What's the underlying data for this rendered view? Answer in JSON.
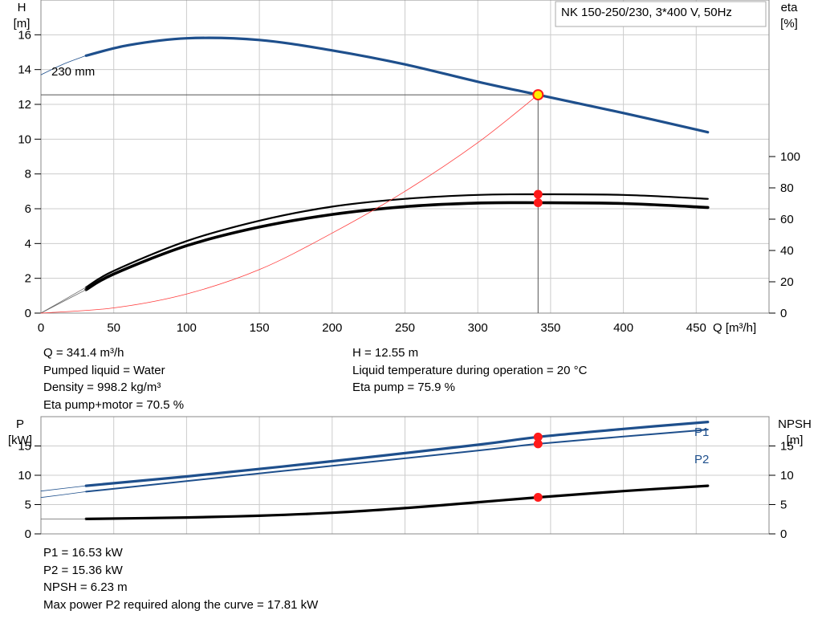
{
  "colors": {
    "head": "#1e4f8c",
    "eta": "#000000",
    "sys": "#ff3b3b",
    "dot": "#ff1a1a",
    "dot_yellow": "#ffee00",
    "grid": "#cccccc",
    "bg": "#ffffff"
  },
  "chart_data": [
    {
      "type": "line",
      "title": "NK 150-250/230, 3*400 V, 50Hz",
      "xlabel": "Q [m³/h]",
      "ylabel_left": [
        "H",
        "[m]"
      ],
      "ylabel_right": [
        "eta",
        "[%]"
      ],
      "impeller_label": "230 mm",
      "xlim": [
        0,
        500
      ],
      "ylim_left": [
        0,
        18
      ],
      "ylim_right": [
        0,
        200
      ],
      "x_ticks": [
        0,
        50,
        100,
        150,
        200,
        250,
        300,
        350,
        400,
        450
      ],
      "y_left_ticks": [
        0,
        2,
        4,
        6,
        8,
        10,
        12,
        14,
        16
      ],
      "y_right_ticks": [
        0,
        20,
        40,
        60,
        80,
        100
      ],
      "grid": true,
      "series": [
        {
          "key": "head",
          "axis": "left",
          "x": [
            31,
            60,
            100,
            150,
            200,
            250,
            300,
            341.4,
            400,
            458
          ],
          "y": [
            14.8,
            15.4,
            15.8,
            15.7,
            15.1,
            14.3,
            13.3,
            12.55,
            11.5,
            10.4
          ]
        },
        {
          "key": "head_ext",
          "axis": "left",
          "x": [
            0,
            15,
            31
          ],
          "y": [
            13.7,
            14.3,
            14.8
          ]
        },
        {
          "key": "eta_pump",
          "axis": "right",
          "x": [
            31,
            50,
            100,
            150,
            200,
            250,
            300,
            341.4,
            400,
            458
          ],
          "y": [
            16.5,
            27,
            46,
            59,
            68,
            73,
            75.5,
            75.9,
            75.5,
            73
          ]
        },
        {
          "key": "eta_pump_ext",
          "axis": "right",
          "x": [
            0,
            31
          ],
          "y": [
            0,
            16.5
          ]
        },
        {
          "key": "eta_total",
          "axis": "right",
          "x": [
            31,
            50,
            100,
            150,
            200,
            250,
            300,
            341.4,
            400,
            458
          ],
          "y": [
            15,
            25,
            43,
            55,
            63,
            68,
            70.3,
            70.5,
            70,
            67.5
          ]
        },
        {
          "key": "eta_total_ext",
          "axis": "right",
          "x": [
            0,
            31
          ],
          "y": [
            0,
            15
          ]
        },
        {
          "key": "system",
          "axis": "left",
          "x": [
            0,
            50,
            100,
            150,
            200,
            250,
            300,
            341.4
          ],
          "y": [
            0,
            0.3,
            1.1,
            2.5,
            4.6,
            7.0,
            9.8,
            12.55
          ]
        }
      ],
      "duty_point": {
        "q": 341.4,
        "h": 12.55,
        "eta_pump": 75.9,
        "eta_total": 70.5
      }
    },
    {
      "type": "line",
      "ylabel_left": [
        "P",
        "[kW]"
      ],
      "ylabel_right": [
        "NPSH",
        "[m]"
      ],
      "xlim": [
        0,
        500
      ],
      "ylim_left": [
        0,
        20
      ],
      "ylim_right": [
        0,
        20
      ],
      "y_left_ticks": [
        0,
        5,
        10,
        15
      ],
      "y_right_ticks": [
        0,
        5,
        10,
        15
      ],
      "grid": true,
      "series": [
        {
          "key": "p1",
          "name": "P1",
          "axis": "left",
          "x": [
            31,
            100,
            200,
            300,
            341.4,
            400,
            458
          ],
          "y": [
            8.2,
            9.8,
            12.4,
            15.2,
            16.53,
            17.9,
            19.1
          ]
        },
        {
          "key": "p1_ext",
          "axis": "left",
          "x": [
            0,
            31
          ],
          "y": [
            7.3,
            8.2
          ]
        },
        {
          "key": "p2",
          "name": "P2",
          "axis": "left",
          "x": [
            31,
            100,
            200,
            300,
            341.4,
            400,
            458
          ],
          "y": [
            7.2,
            9.0,
            11.6,
            14.2,
            15.36,
            16.6,
            17.8
          ]
        },
        {
          "key": "p2_ext",
          "axis": "left",
          "x": [
            0,
            31
          ],
          "y": [
            6.2,
            7.2
          ]
        },
        {
          "key": "npsh",
          "axis": "right",
          "x": [
            31,
            100,
            150,
            200,
            250,
            300,
            341.4,
            400,
            458
          ],
          "y": [
            2.55,
            2.8,
            3.1,
            3.6,
            4.4,
            5.4,
            6.23,
            7.3,
            8.2
          ]
        },
        {
          "key": "npsh_ext",
          "axis": "right",
          "x": [
            0,
            31
          ],
          "y": [
            2.55,
            2.55
          ]
        }
      ],
      "duty_point": {
        "q": 341.4,
        "p1": 16.53,
        "p2": 15.36,
        "npsh": 6.23
      }
    }
  ],
  "info_top": {
    "col1": [
      "Q = 341.4 m³/h",
      "Pumped liquid = Water",
      "Density = 998.2 kg/m³",
      "Eta pump+motor = 70.5 %"
    ],
    "col2": [
      "H = 12.55 m",
      "Liquid temperature during operation = 20 °C",
      "Eta pump = 75.9 %"
    ]
  },
  "info_bottom": [
    "P1 = 16.53 kW",
    "P2 = 15.36 kW",
    "NPSH = 6.23 m",
    "Max power P2 required along the curve = 17.81 kW"
  ]
}
